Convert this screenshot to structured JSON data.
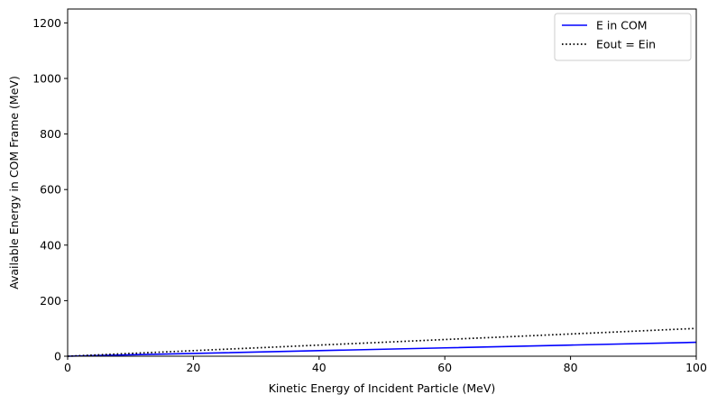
{
  "chart_data": {
    "type": "line",
    "title": "",
    "xlabel": "Kinetic Energy of Incident Particle (MeV)",
    "ylabel": "Available Energy in COM Frame (MeV)",
    "xlim": [
      0,
      100
    ],
    "ylim": [
      0,
      1250
    ],
    "xticks": [
      0,
      20,
      40,
      60,
      80,
      100
    ],
    "yticks": [
      0,
      200,
      400,
      600,
      800,
      1000,
      1200
    ],
    "grid": false,
    "legend_position": "top-right",
    "series": [
      {
        "name": "E in COM",
        "style": "solid",
        "color": "#0000ff",
        "x": [
          0,
          20,
          40,
          60,
          80,
          100
        ],
        "y": [
          0,
          10,
          20,
          30,
          40,
          50
        ]
      },
      {
        "name": "Eout = Ein",
        "style": "dotted",
        "color": "#000000",
        "x": [
          0,
          20,
          40,
          60,
          80,
          100
        ],
        "y": [
          0,
          20,
          40,
          60,
          80,
          100
        ]
      }
    ]
  }
}
